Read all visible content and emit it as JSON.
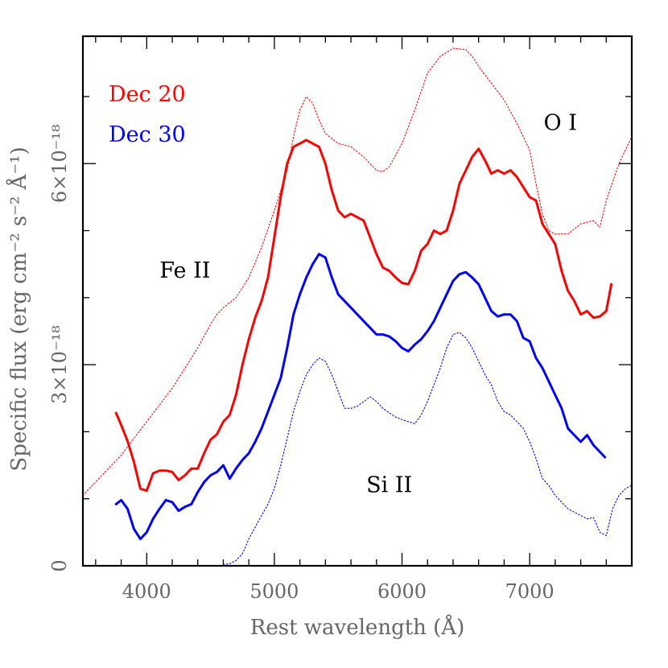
{
  "chart_data": {
    "type": "line",
    "title": "",
    "xlabel": "Rest wavelength (Å)",
    "ylabel": "Specific flux (erg cm⁻² s⁻² Å⁻¹)",
    "xlim": [
      3500,
      7800
    ],
    "ylim": [
      0,
      7.9e-18
    ],
    "x_ticks": [
      {
        "value": 4000,
        "label": "4000"
      },
      {
        "value": 5000,
        "label": "5000"
      },
      {
        "value": 6000,
        "label": "6000"
      },
      {
        "value": 7000,
        "label": "7000"
      }
    ],
    "y_ticks": [
      {
        "value": 0,
        "label": "0"
      },
      {
        "value": 3e-18,
        "label": "3×10⁻¹⁸"
      },
      {
        "value": 6e-18,
        "label": "6×10⁻¹⁸"
      }
    ],
    "annotations": [
      {
        "text": "Fe II",
        "x": 4300,
        "y": 4.3e-18
      },
      {
        "text": "O I",
        "x": 7240,
        "y": 6.5e-18
      },
      {
        "text": "Si II",
        "x": 5900,
        "y": 1.1e-18
      }
    ],
    "legend": {
      "placement": "top-left",
      "entries": [
        {
          "label": "Dec 20",
          "color": "#ff0000"
        },
        {
          "label": "Dec 30",
          "color": "#0000ff"
        }
      ]
    },
    "series": [
      {
        "name": "Dec 20",
        "color": "#ff0000",
        "style": "solid",
        "x": [
          3760,
          3800,
          3850,
          3900,
          3950,
          4000,
          4050,
          4100,
          4150,
          4200,
          4250,
          4300,
          4350,
          4400,
          4450,
          4500,
          4550,
          4600,
          4650,
          4700,
          4750,
          4800,
          4850,
          4900,
          4950,
          5000,
          5050,
          5100,
          5150,
          5200,
          5250,
          5300,
          5350,
          5400,
          5450,
          5500,
          5550,
          5600,
          5650,
          5700,
          5750,
          5800,
          5850,
          5900,
          5950,
          6000,
          6050,
          6100,
          6150,
          6200,
          6250,
          6300,
          6350,
          6400,
          6450,
          6500,
          6550,
          6600,
          6650,
          6700,
          6750,
          6800,
          6850,
          6900,
          6950,
          7000,
          7050,
          7100,
          7150,
          7200,
          7250,
          7300,
          7350,
          7400,
          7450,
          7500,
          7550,
          7600,
          7640
        ],
        "y": [
          2.28e-18,
          2.1e-18,
          1.86e-18,
          1.55e-18,
          1.15e-18,
          1.12e-18,
          1.38e-18,
          1.42e-18,
          1.42e-18,
          1.4e-18,
          1.28e-18,
          1.35e-18,
          1.45e-18,
          1.45e-18,
          1.68e-18,
          1.88e-18,
          1.96e-18,
          2.15e-18,
          2.25e-18,
          2.55e-18,
          3e-18,
          3.38e-18,
          3.7e-18,
          3.95e-18,
          4.3e-18,
          4.9e-18,
          5.5e-18,
          6e-18,
          6.25e-18,
          6.3e-18,
          6.35e-18,
          6.3e-18,
          6.25e-18,
          6e-18,
          5.6e-18,
          5.3e-18,
          5.2e-18,
          5.25e-18,
          5.2e-18,
          5.15e-18,
          4.9e-18,
          4.65e-18,
          4.45e-18,
          4.4e-18,
          4.3e-18,
          4.22e-18,
          4.2e-18,
          4.4e-18,
          4.7e-18,
          4.8e-18,
          5e-18,
          4.95e-18,
          5e-18,
          5.3e-18,
          5.7e-18,
          5.9e-18,
          6.1e-18,
          6.22e-18,
          6.05e-18,
          5.85e-18,
          5.9e-18,
          5.85e-18,
          5.9e-18,
          5.8e-18,
          5.65e-18,
          5.5e-18,
          5.45e-18,
          5.1e-18,
          4.95e-18,
          4.8e-18,
          4.4e-18,
          4.1e-18,
          3.95e-18,
          3.75e-18,
          3.8e-18,
          3.7e-18,
          3.72e-18,
          3.8e-18,
          4.2e-18
        ]
      },
      {
        "name": "Dec 30",
        "color": "#0000ff",
        "style": "solid",
        "x": [
          3760,
          3800,
          3850,
          3900,
          3950,
          4000,
          4050,
          4100,
          4150,
          4200,
          4250,
          4300,
          4350,
          4400,
          4450,
          4500,
          4550,
          4600,
          4650,
          4700,
          4750,
          4800,
          4850,
          4900,
          4950,
          5000,
          5050,
          5100,
          5150,
          5200,
          5250,
          5300,
          5350,
          5400,
          5450,
          5500,
          5550,
          5600,
          5650,
          5700,
          5750,
          5800,
          5850,
          5900,
          5950,
          6000,
          6050,
          6100,
          6150,
          6200,
          6250,
          6300,
          6350,
          6400,
          6450,
          6500,
          6550,
          6600,
          6650,
          6700,
          6750,
          6800,
          6850,
          6900,
          6950,
          7000,
          7050,
          7100,
          7150,
          7200,
          7250,
          7300,
          7350,
          7400,
          7450,
          7500,
          7550,
          7590
        ],
        "y": [
          9.2e-19,
          9.8e-19,
          8.5e-19,
          5.5e-19,
          4e-19,
          5e-19,
          7e-19,
          8.5e-19,
          9.8e-19,
          9.5e-19,
          8.2e-19,
          8.8e-19,
          9.2e-19,
          1.1e-18,
          1.25e-18,
          1.35e-18,
          1.4e-18,
          1.5e-18,
          1.3e-18,
          1.45e-18,
          1.58e-18,
          1.68e-18,
          1.85e-18,
          2.05e-18,
          2.3e-18,
          2.55e-18,
          2.8e-18,
          3.25e-18,
          3.75e-18,
          4.05e-18,
          4.3e-18,
          4.5e-18,
          4.65e-18,
          4.6e-18,
          4.3e-18,
          4.05e-18,
          3.95e-18,
          3.85e-18,
          3.75e-18,
          3.65e-18,
          3.55e-18,
          3.45e-18,
          3.45e-18,
          3.42e-18,
          3.35e-18,
          3.25e-18,
          3.2e-18,
          3.3e-18,
          3.38e-18,
          3.5e-18,
          3.65e-18,
          3.85e-18,
          4.05e-18,
          4.25e-18,
          4.35e-18,
          4.38e-18,
          4.3e-18,
          4.2e-18,
          4e-18,
          3.8e-18,
          3.72e-18,
          3.75e-18,
          3.75e-18,
          3.65e-18,
          3.4e-18,
          3.35e-18,
          3.1e-18,
          2.95e-18,
          2.75e-18,
          2.55e-18,
          2.35e-18,
          2.05e-18,
          1.95e-18,
          1.85e-18,
          1.95e-18,
          1.8e-18,
          1.7e-18,
          1.62e-18
        ]
      },
      {
        "name": "",
        "color": "#ff0000",
        "style": "dotted",
        "x": [
          3500,
          3600,
          3700,
          3800,
          3900,
          4000,
          4100,
          4200,
          4300,
          4400,
          4500,
          4550,
          4600,
          4700,
          4800,
          4900,
          5000,
          5100,
          5150,
          5200,
          5250,
          5300,
          5350,
          5400,
          5500,
          5600,
          5700,
          5750,
          5800,
          5850,
          5900,
          6000,
          6100,
          6200,
          6300,
          6400,
          6500,
          6550,
          6600,
          6700,
          6800,
          6900,
          7000,
          7050,
          7100,
          7150,
          7200,
          7300,
          7400,
          7500,
          7550,
          7600,
          7700,
          7800
        ],
        "y": [
          1.05e-18,
          1.25e-18,
          1.45e-18,
          1.65e-18,
          1.9e-18,
          2.15e-18,
          2.4e-18,
          2.65e-18,
          2.95e-18,
          3.25e-18,
          3.6e-18,
          3.75e-18,
          3.85e-18,
          4e-18,
          4.3e-18,
          4.75e-18,
          5.3e-18,
          5.9e-18,
          6.4e-18,
          6.8e-18,
          7e-18,
          6.9e-18,
          6.65e-18,
          6.45e-18,
          6.3e-18,
          6.25e-18,
          6.1e-18,
          6e-18,
          5.9e-18,
          5.88e-18,
          5.95e-18,
          6.3e-18,
          6.8e-18,
          7.35e-18,
          7.6e-18,
          7.72e-18,
          7.7e-18,
          7.6e-18,
          7.45e-18,
          7.2e-18,
          6.95e-18,
          6.6e-18,
          6.2e-18,
          5.7e-18,
          5.25e-18,
          5e-18,
          4.95e-18,
          4.95e-18,
          5.1e-18,
          5.15e-18,
          5.05e-18,
          5.45e-18,
          6e-18,
          6.4e-18
        ]
      },
      {
        "name": "",
        "color": "#0000ff",
        "style": "dotted",
        "x": [
          4600,
          4650,
          4700,
          4750,
          4800,
          4850,
          4900,
          4950,
          5000,
          5050,
          5100,
          5150,
          5200,
          5250,
          5300,
          5350,
          5400,
          5450,
          5500,
          5550,
          5600,
          5650,
          5700,
          5750,
          5800,
          5850,
          5900,
          5950,
          6000,
          6050,
          6100,
          6150,
          6200,
          6250,
          6300,
          6350,
          6400,
          6450,
          6500,
          6550,
          6600,
          6650,
          6700,
          6750,
          6800,
          6850,
          6900,
          6950,
          7000,
          7050,
          7100,
          7150,
          7200,
          7250,
          7300,
          7350,
          7400,
          7450,
          7500,
          7550,
          7600,
          7650,
          7700,
          7750,
          7800
        ],
        "y": [
          2e-20,
          3e-20,
          8e-20,
          1.8e-19,
          4e-19,
          5.8e-19,
          7.5e-19,
          9.2e-19,
          1.15e-18,
          1.5e-18,
          1.9e-18,
          2.3e-18,
          2.6e-18,
          2.85e-18,
          3e-18,
          3.1e-18,
          3.05e-18,
          2.85e-18,
          2.6e-18,
          2.35e-18,
          2.35e-18,
          2.38e-18,
          2.45e-18,
          2.52e-18,
          2.45e-18,
          2.35e-18,
          2.28e-18,
          2.22e-18,
          2.18e-18,
          2.15e-18,
          2.12e-18,
          2.25e-18,
          2.45e-18,
          2.7e-18,
          2.95e-18,
          3.25e-18,
          3.45e-18,
          3.48e-18,
          3.4e-18,
          3.25e-18,
          3.05e-18,
          2.85e-18,
          2.7e-18,
          2.45e-18,
          2.3e-18,
          2.25e-18,
          2.15e-18,
          2.05e-18,
          1.85e-18,
          1.6e-18,
          1.3e-18,
          1.2e-18,
          1.05e-18,
          9.5e-19,
          8.5e-19,
          8e-19,
          7.5e-19,
          7e-19,
          7.2e-19,
          5e-19,
          4.5e-19,
          8.5e-19,
          1.05e-18,
          1.15e-18,
          1.2e-18
        ]
      }
    ]
  }
}
